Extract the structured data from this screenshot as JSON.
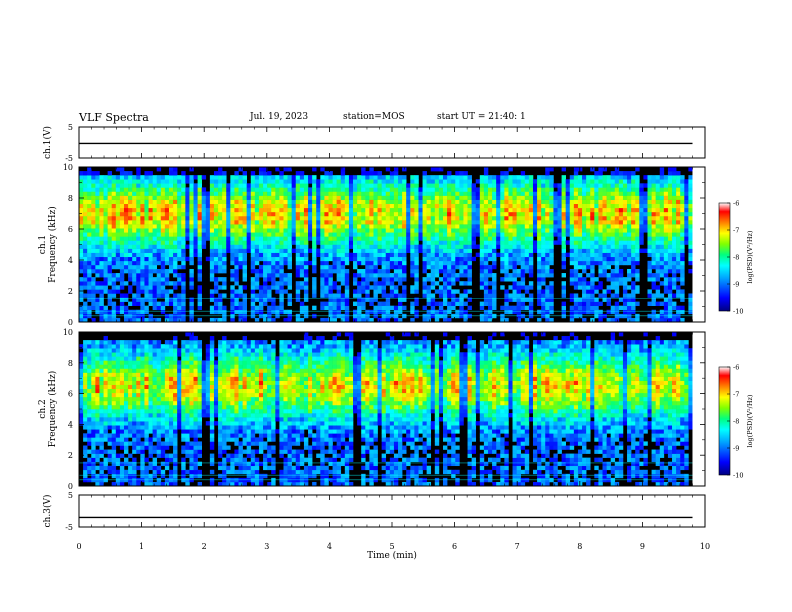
{
  "header": {
    "title": "VLF Spectra",
    "date": "Jul. 19, 2023",
    "station": "station=MOS",
    "start": "start UT = 21:40: 1"
  },
  "colors": {
    "colormap": [
      "#000080",
      "#0000ff",
      "#00a0ff",
      "#00ffff",
      "#00ff80",
      "#80ff00",
      "#ffff00",
      "#ff8000",
      "#ff0000",
      "#ffffff"
    ],
    "spectrogram_background": "#000000",
    "reference_line": "#00ffff"
  },
  "chart_data": [
    {
      "type": "line",
      "panel": "ch1-waveform",
      "ylabel": "ch.1(V)",
      "ylim": [
        -5,
        5
      ],
      "xlim": [
        0,
        10
      ],
      "y_ticks": [
        "5",
        "-5"
      ],
      "series": [
        {
          "x": [
            0,
            9.8
          ],
          "y": [
            -0.3,
            -0.3
          ]
        }
      ]
    },
    {
      "type": "heatmap",
      "panel": "ch1-spectrogram",
      "ylabel": "ch.1\nFrequency (kHz)",
      "ylim": [
        0,
        10
      ],
      "xlim": [
        0,
        10
      ],
      "y_ticks": [
        "0",
        "2",
        "4",
        "6",
        "8",
        "10"
      ],
      "data_end_min": 9.8,
      "band_center_khz": 7,
      "colorbar": {
        "label": "log(PSD)(V²/Hz)",
        "range": [
          -10,
          -6
        ],
        "ticks": [
          "-6",
          "-7",
          "-8",
          "-9",
          "-10"
        ]
      }
    },
    {
      "type": "heatmap",
      "panel": "ch2-spectrogram",
      "ylabel": "ch.2\nFrequency (kHz)",
      "ylim": [
        0,
        10
      ],
      "xlim": [
        0,
        10
      ],
      "y_ticks": [
        "0",
        "2",
        "4",
        "6",
        "8",
        "10"
      ],
      "data_end_min": 9.8,
      "band_center_khz": 6.5,
      "colorbar": {
        "label": "log(PSD)(V²/Hz)",
        "range": [
          -10,
          -6
        ],
        "ticks": [
          "-6",
          "-7",
          "-8",
          "-9",
          "-10"
        ]
      }
    },
    {
      "type": "line",
      "panel": "ch3-waveform",
      "ylabel": "ch.3(V)",
      "xlabel": "Time (min)",
      "ylim": [
        -5,
        5
      ],
      "xlim": [
        0,
        10
      ],
      "y_ticks": [
        "5",
        "-5"
      ],
      "x_ticks": [
        "0",
        "1",
        "2",
        "3",
        "4",
        "5",
        "6",
        "7",
        "8",
        "9",
        "10"
      ],
      "series": [
        {
          "x": [
            0,
            9.8
          ],
          "y": [
            -2,
            -2
          ]
        }
      ]
    }
  ]
}
